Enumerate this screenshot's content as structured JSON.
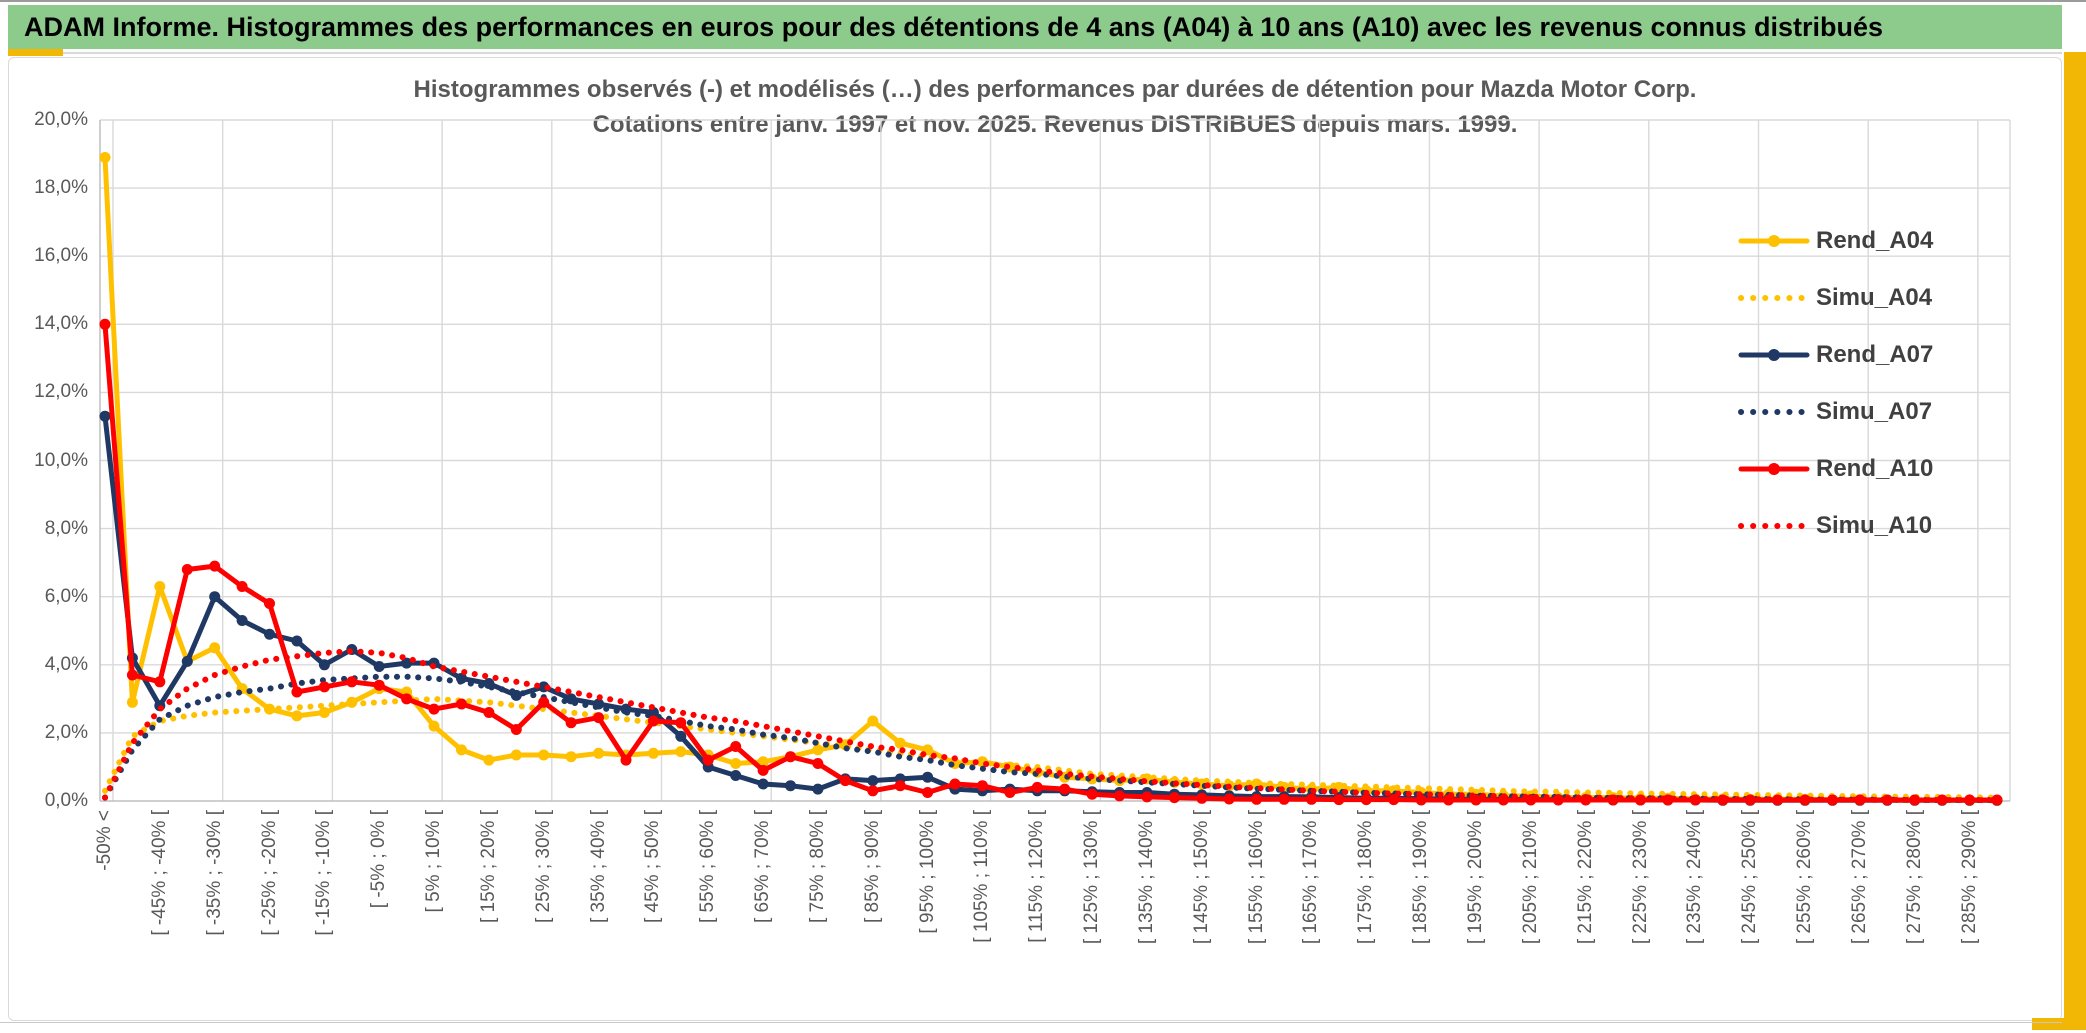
{
  "window": {
    "title": "ADAM Informe. Histogrammes des performances en euros pour des détentions de 4 ans (A04) à 10 ans (A10) avec les revenus connus distribués"
  },
  "chart": {
    "title_line1": "Histogrammes observés (-) et modélisés (…) des performances par durées de détention pour Mazda Motor Corp.",
    "title_line2": "Cotations entre janv. 1997 et nov. 2025. Revenus DISTRIBUES depuis mars. 1999.",
    "y_axis_labels": [
      "20,0%",
      "18,0%",
      "16,0%",
      "14,0%",
      "12,0%",
      "10,0%",
      "8,0%",
      "6,0%",
      "4,0%",
      "2,0%",
      "0,0%"
    ],
    "colors": {
      "gold": "#FFC000",
      "navy": "#1F3864",
      "red": "#FF0000",
      "grid": "#D9D9D9",
      "axis": "#BFBFBF",
      "text": "#595959",
      "header_green": "#8DCB8D",
      "accent_gold": "#F2B705"
    }
  },
  "chart_data": {
    "type": "line",
    "title": "Histogrammes observés (-) et modélisés (…) des performances par durées de détention pour Mazda Motor Corp. Cotations entre janv. 1997 et nov. 2025. Revenus DISTRIBUES depuis mars. 1999.",
    "ylim": [
      0,
      20
    ],
    "y_tick_step": 2,
    "y_format": "percent, comma decimal",
    "grid": "on",
    "legend_position": "inside top-right",
    "categories": [
      "-50% <",
      "",
      "[ -45% ; -40% [",
      "",
      "[ -35% ; -30% [",
      "",
      "[ -25% ; -20% [",
      "",
      "[ -15% ; -10% [",
      "",
      "[ -5% ; 0% [",
      "",
      "[ 5% ; 10% [",
      "",
      "[ 15% ; 20% [",
      "",
      "[ 25% ; 30% [",
      "",
      "[ 35% ; 40% [",
      "",
      "[ 45% ; 50% [",
      "",
      "[ 55% ; 60% [",
      "",
      "[ 65% ; 70% [",
      "",
      "[ 75% ; 80% [",
      "",
      "[ 85% ; 90% [",
      "",
      "[ 95% ; 100% [",
      "",
      "[ 105% ; 110% [",
      "",
      "[ 115% ; 120% [",
      "",
      "[ 125% ; 130% [",
      "",
      "[ 135% ; 140% [",
      "",
      "[ 145% ; 150% [",
      "",
      "[ 155% ; 160% [",
      "",
      "[ 165% ; 170% [",
      "",
      "[ 175% ; 180% [",
      "",
      "[ 185% ; 190% [",
      "",
      "[ 195% ; 200% [",
      "",
      "[ 205% ; 210% [",
      "",
      "[ 215% ; 220% [",
      "",
      "[ 225% ; 230% [",
      "",
      "[ 235% ; 240% [",
      "",
      "[ 245% ; 250% [",
      "",
      "[ 255% ; 260% [",
      "",
      "[ 265% ; 270% [",
      "",
      "[ 275% ; 280% [",
      "",
      "[ 285% ; 290% [",
      ""
    ],
    "series": [
      {
        "name": "Rend_A04",
        "color": "#FFC000",
        "style": "solid",
        "markers": true,
        "values": [
          18.9,
          2.9,
          6.3,
          4.1,
          4.5,
          3.3,
          2.7,
          2.5,
          2.6,
          2.9,
          3.3,
          3.2,
          2.2,
          1.5,
          1.2,
          1.35,
          1.35,
          1.3,
          1.4,
          1.35,
          1.4,
          1.45,
          1.35,
          1.1,
          1.15,
          1.3,
          1.5,
          1.65,
          2.35,
          1.7,
          1.5,
          1.1,
          1.15,
          1.0,
          0.85,
          0.7,
          0.65,
          0.6,
          0.65,
          0.55,
          0.5,
          0.45,
          0.5,
          0.4,
          0.35,
          0.4,
          0.3,
          0.3,
          0.25,
          0.2,
          0.2,
          0.15,
          0.15,
          0.1,
          0.1,
          0.1,
          0.08,
          0.08,
          0.06,
          0.06,
          0.05,
          0.05,
          0.05,
          0.04,
          0.04,
          0.03,
          0.03,
          0.03,
          0.02,
          0.02
        ]
      },
      {
        "name": "Simu_A04",
        "color": "#FFC000",
        "style": "dotted",
        "markers": false,
        "values": [
          0.3,
          1.9,
          2.35,
          2.5,
          2.6,
          2.65,
          2.7,
          2.75,
          2.8,
          2.85,
          2.9,
          2.95,
          3.0,
          2.95,
          2.9,
          2.8,
          2.7,
          2.6,
          2.5,
          2.4,
          2.3,
          2.2,
          2.1,
          2.0,
          1.9,
          1.8,
          1.7,
          1.6,
          1.5,
          1.4,
          1.3,
          1.2,
          1.1,
          1.05,
          1.0,
          0.9,
          0.8,
          0.75,
          0.7,
          0.65,
          0.6,
          0.57,
          0.53,
          0.5,
          0.48,
          0.45,
          0.43,
          0.4,
          0.38,
          0.35,
          0.33,
          0.3,
          0.28,
          0.27,
          0.25,
          0.24,
          0.22,
          0.21,
          0.2,
          0.19,
          0.18,
          0.17,
          0.16,
          0.15,
          0.14,
          0.13,
          0.12,
          0.12,
          0.11,
          0.1
        ]
      },
      {
        "name": "Rend_A07",
        "color": "#1F3864",
        "style": "solid",
        "markers": true,
        "values": [
          11.3,
          4.2,
          2.8,
          4.1,
          6.0,
          5.3,
          4.9,
          4.7,
          4.0,
          4.45,
          3.95,
          4.05,
          4.05,
          3.6,
          3.45,
          3.1,
          3.35,
          3.0,
          2.85,
          2.7,
          2.6,
          1.9,
          1.0,
          0.75,
          0.5,
          0.45,
          0.35,
          0.65,
          0.6,
          0.65,
          0.7,
          0.35,
          0.3,
          0.35,
          0.3,
          0.3,
          0.27,
          0.25,
          0.25,
          0.2,
          0.18,
          0.15,
          0.13,
          0.13,
          0.12,
          0.1,
          0.08,
          0.08,
          0.07,
          0.06,
          0.05,
          0.05,
          0.04,
          0.04,
          0.04,
          0.03,
          0.03,
          0.03,
          0.03,
          0.02,
          0.02,
          0.02,
          0.02,
          0.02,
          0.02,
          0.02,
          0.02,
          0.02,
          0.02,
          0.02
        ]
      },
      {
        "name": "Simu_A07",
        "color": "#1F3864",
        "style": "dotted",
        "markers": false,
        "values": [
          0.1,
          1.5,
          2.4,
          2.8,
          3.05,
          3.2,
          3.3,
          3.45,
          3.55,
          3.6,
          3.65,
          3.65,
          3.6,
          3.5,
          3.35,
          3.2,
          3.05,
          2.9,
          2.75,
          2.6,
          2.5,
          2.35,
          2.2,
          2.1,
          1.95,
          1.85,
          1.7,
          1.55,
          1.45,
          1.3,
          1.2,
          1.05,
          0.95,
          0.85,
          0.8,
          0.72,
          0.65,
          0.6,
          0.55,
          0.5,
          0.45,
          0.4,
          0.36,
          0.33,
          0.3,
          0.27,
          0.24,
          0.22,
          0.2,
          0.18,
          0.16,
          0.14,
          0.13,
          0.12,
          0.1,
          0.09,
          0.08,
          0.08,
          0.07,
          0.06,
          0.06,
          0.05,
          0.05,
          0.04,
          0.04,
          0.04,
          0.03,
          0.03,
          0.03,
          0.03
        ]
      },
      {
        "name": "Rend_A10",
        "color": "#FF0000",
        "style": "solid",
        "markers": true,
        "values": [
          14.0,
          3.7,
          3.5,
          6.8,
          6.9,
          6.3,
          5.8,
          3.2,
          3.35,
          3.5,
          3.4,
          3.0,
          2.7,
          2.85,
          2.6,
          2.1,
          2.9,
          2.3,
          2.45,
          1.2,
          2.35,
          2.3,
          1.2,
          1.6,
          0.9,
          1.3,
          1.1,
          0.6,
          0.3,
          0.45,
          0.25,
          0.5,
          0.45,
          0.25,
          0.4,
          0.35,
          0.2,
          0.15,
          0.12,
          0.1,
          0.08,
          0.06,
          0.05,
          0.05,
          0.05,
          0.04,
          0.04,
          0.04,
          0.03,
          0.03,
          0.03,
          0.03,
          0.03,
          0.03,
          0.03,
          0.03,
          0.03,
          0.03,
          0.03,
          0.03,
          0.03,
          0.03,
          0.03,
          0.03,
          0.03,
          0.03,
          0.03,
          0.03,
          0.03,
          0.03
        ]
      },
      {
        "name": "Simu_A10",
        "color": "#FF0000",
        "style": "dotted",
        "markers": false,
        "values": [
          0.1,
          1.7,
          2.7,
          3.3,
          3.7,
          3.95,
          4.15,
          4.25,
          4.35,
          4.4,
          4.35,
          4.2,
          3.95,
          3.8,
          3.65,
          3.5,
          3.35,
          3.2,
          3.05,
          2.9,
          2.75,
          2.6,
          2.45,
          2.35,
          2.2,
          2.05,
          1.9,
          1.75,
          1.6,
          1.5,
          1.35,
          1.25,
          1.1,
          1.0,
          0.9,
          0.8,
          0.72,
          0.65,
          0.58,
          0.52,
          0.47,
          0.42,
          0.38,
          0.34,
          0.3,
          0.27,
          0.24,
          0.22,
          0.2,
          0.18,
          0.16,
          0.14,
          0.12,
          0.11,
          0.1,
          0.09,
          0.08,
          0.07,
          0.06,
          0.06,
          0.05,
          0.05,
          0.04,
          0.04,
          0.04,
          0.03,
          0.03,
          0.03,
          0.03,
          0.02
        ]
      }
    ]
  }
}
